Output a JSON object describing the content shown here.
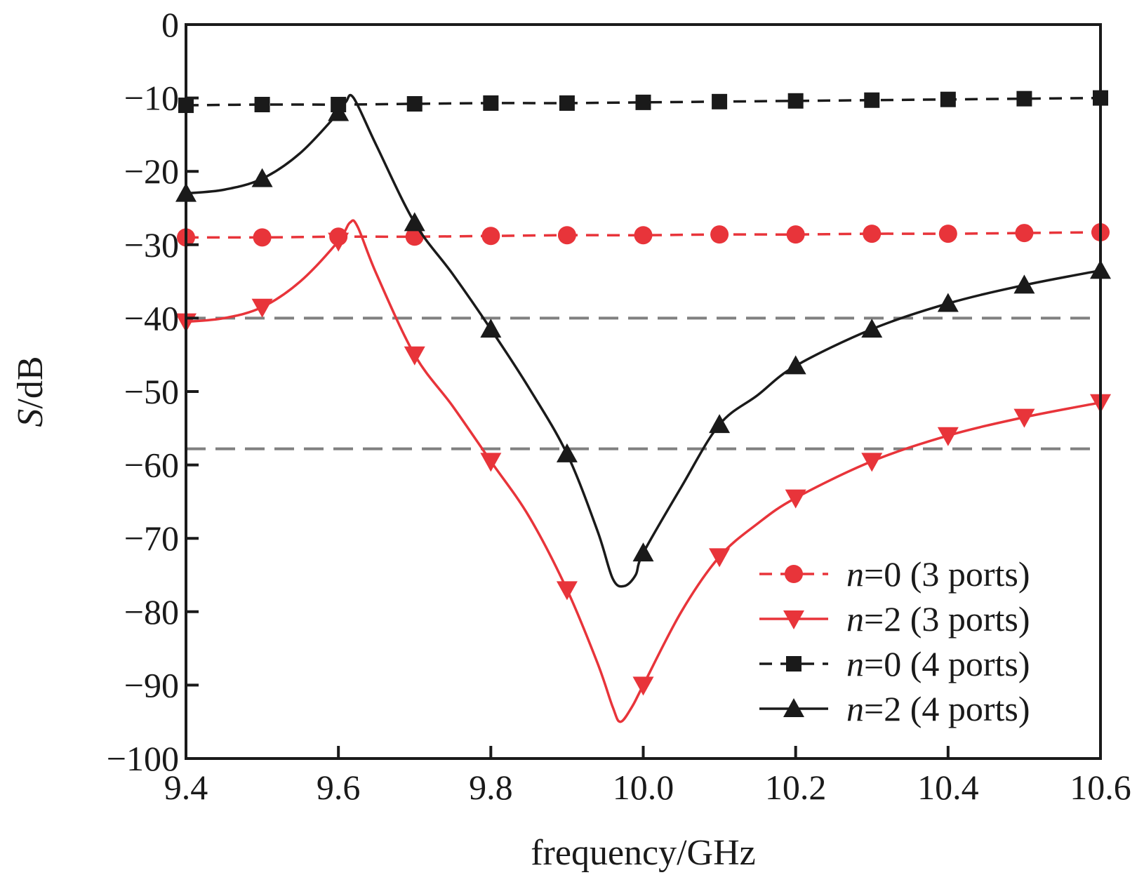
{
  "chart_data": {
    "type": "line",
    "xlabel": "frequency/GHz",
    "ylabel_italic": "S",
    "ylabel_rest": "/dB",
    "xlim": [
      9.4,
      10.6
    ],
    "ylim": [
      -100,
      0
    ],
    "x_ticks": [
      9.4,
      9.6,
      9.8,
      10.0,
      10.2,
      10.4,
      10.6
    ],
    "x_tick_labels": [
      "9.4",
      "9.6",
      "9.8",
      "10.0",
      "10.2",
      "10.4",
      "10.6"
    ],
    "y_ticks": [
      0,
      -10,
      -20,
      -30,
      -40,
      -50,
      -60,
      -70,
      -80,
      -90,
      -100
    ],
    "y_tick_labels": [
      "0",
      "−10",
      "−20",
      "−30",
      "−40",
      "−50",
      "−60",
      "−70",
      "−80",
      "−90",
      "−100"
    ],
    "grid": false,
    "legend_position": "bottom-right",
    "reference_lines": [
      -40,
      -57.8
    ],
    "reference_line_color": "#808080",
    "series": [
      {
        "name_italic": "n",
        "name_rest": "=0 (3 ports)",
        "color": "#e8343a",
        "dash": "dashed",
        "marker": "circle",
        "x": [
          9.4,
          9.5,
          9.6,
          9.7,
          9.8,
          9.9,
          10.0,
          10.1,
          10.2,
          10.3,
          10.4,
          10.5,
          10.6
        ],
        "y": [
          -29.0,
          -29.0,
          -28.9,
          -28.9,
          -28.8,
          -28.7,
          -28.7,
          -28.6,
          -28.6,
          -28.5,
          -28.5,
          -28.4,
          -28.3
        ]
      },
      {
        "name_italic": "n",
        "name_rest": "=2 (3 ports)",
        "color": "#e8343a",
        "dash": "solid",
        "marker": "triangle-down",
        "x": [
          9.4,
          9.45,
          9.5,
          9.55,
          9.6,
          9.615,
          9.625,
          9.65,
          9.7,
          9.75,
          9.8,
          9.85,
          9.9,
          9.94,
          9.96,
          9.97,
          9.985,
          10.0,
          10.05,
          10.1,
          10.15,
          10.2,
          10.3,
          10.4,
          10.5,
          10.6
        ],
        "y": [
          -40.5,
          -40.0,
          -38.5,
          -35.0,
          -29.5,
          -27.0,
          -27.5,
          -34.0,
          -45.0,
          -52.0,
          -59.5,
          -67.0,
          -77.0,
          -87.0,
          -93.0,
          -95.0,
          -93.0,
          -90.0,
          -80.0,
          -72.5,
          -68.0,
          -64.5,
          -59.5,
          -56.0,
          -53.5,
          -51.5
        ]
      },
      {
        "name_italic": "n",
        "name_rest": "=0 (4 ports)",
        "color": "#1a1a1a",
        "dash": "dashed",
        "marker": "square",
        "x": [
          9.4,
          9.5,
          9.6,
          9.7,
          9.8,
          9.9,
          10.0,
          10.1,
          10.2,
          10.3,
          10.4,
          10.5,
          10.6
        ],
        "y": [
          -11.0,
          -10.9,
          -10.9,
          -10.8,
          -10.7,
          -10.7,
          -10.6,
          -10.5,
          -10.4,
          -10.3,
          -10.2,
          -10.1,
          -10.0
        ]
      },
      {
        "name_italic": "n",
        "name_rest": "=2 (4 ports)",
        "color": "#1a1a1a",
        "dash": "solid",
        "marker": "triangle-up",
        "x": [
          9.4,
          9.45,
          9.5,
          9.55,
          9.6,
          9.61,
          9.62,
          9.65,
          9.7,
          9.75,
          9.8,
          9.85,
          9.9,
          9.94,
          9.96,
          9.975,
          9.99,
          10.0,
          10.05,
          10.1,
          10.15,
          10.2,
          10.3,
          10.4,
          10.5,
          10.6
        ],
        "y": [
          -23.0,
          -22.5,
          -21.0,
          -17.5,
          -12.0,
          -10.5,
          -10.0,
          -16.5,
          -27.0,
          -34.0,
          -41.5,
          -49.5,
          -58.5,
          -69.0,
          -75.5,
          -76.5,
          -75.0,
          -72.0,
          -63.0,
          -54.5,
          -50.5,
          -46.5,
          -41.5,
          -38.0,
          -35.5,
          -33.5
        ]
      }
    ]
  }
}
